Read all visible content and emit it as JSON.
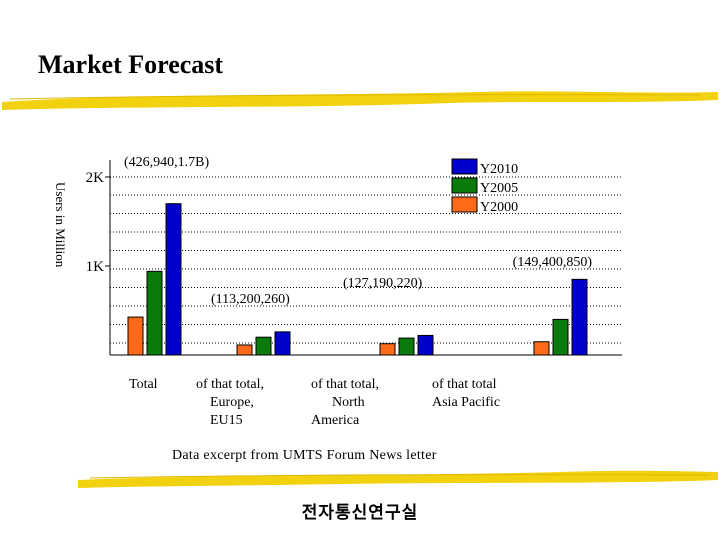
{
  "title": "Market Forecast",
  "chart_data": {
    "type": "bar",
    "ylabel": "Users in Million",
    "xlabel": "",
    "ylim": [
      0,
      2200
    ],
    "y_ticks": [
      {
        "value": 2000,
        "label": "2K"
      },
      {
        "value": 1000,
        "label": "1K"
      }
    ],
    "categories": [
      "Total",
      "of that total,\n    Europe,\n    EU15",
      "of that total,\n      North\nAmerica",
      "of that total\nAsia Pacific"
    ],
    "series": [
      {
        "name": "Y2000",
        "color": "#ff6a1a",
        "values": [
          426,
          113,
          127,
          149
        ]
      },
      {
        "name": "Y2005",
        "color": "#0a7a0a",
        "values": [
          940,
          200,
          190,
          400
        ]
      },
      {
        "name": "Y2010",
        "color": "#0000cc",
        "values": [
          1700,
          260,
          220,
          850
        ]
      }
    ],
    "annotations": [
      "(426,940,1.7B)",
      "(113,200,260)",
      "(127,190,220)",
      "(149,400,850)"
    ],
    "legend": {
      "position": "top-right",
      "order": [
        "Y2010",
        "Y2005",
        "Y2000"
      ]
    },
    "grid": true
  },
  "source_note": "Data excerpt from UMTS Forum News letter",
  "organization": "전자통신연구실"
}
